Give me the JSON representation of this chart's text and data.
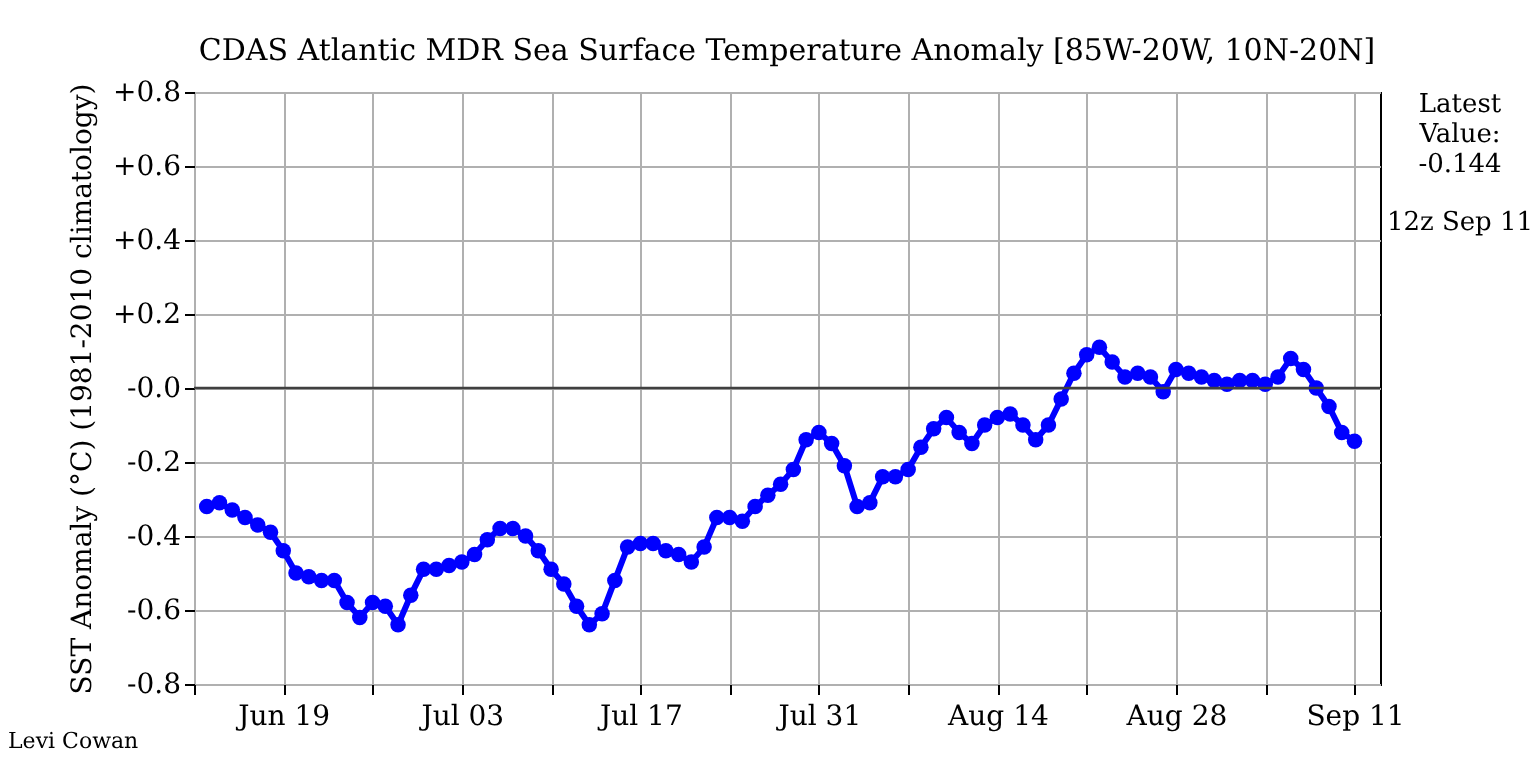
{
  "chart_data": {
    "type": "line",
    "title": "CDAS Atlantic MDR Sea Surface Temperature Anomaly [85W-20W, 10N-20N]",
    "ylabel": "SST Anomaly (°C) (1981-2010 climatology)",
    "x": [
      "--06-13",
      "--06-14",
      "--06-15",
      "--06-16",
      "--06-17",
      "--06-18",
      "--06-19",
      "--06-20",
      "--06-21",
      "--06-22",
      "--06-23",
      "--06-24",
      "--06-25",
      "--06-26",
      "--06-27",
      "--06-28",
      "--06-29",
      "--06-30",
      "--07-01",
      "--07-02",
      "--07-03",
      "--07-04",
      "--07-05",
      "--07-06",
      "--07-07",
      "--07-08",
      "--07-09",
      "--07-10",
      "--07-11",
      "--07-12",
      "--07-13",
      "--07-14",
      "--07-15",
      "--07-16",
      "--07-17",
      "--07-18",
      "--07-19",
      "--07-20",
      "--07-21",
      "--07-22",
      "--07-23",
      "--07-24",
      "--07-25",
      "--07-26",
      "--07-27",
      "--07-28",
      "--07-29",
      "--07-30",
      "--07-31",
      "--08-01",
      "--08-02",
      "--08-03",
      "--08-04",
      "--08-05",
      "--08-06",
      "--08-07",
      "--08-08",
      "--08-09",
      "--08-10",
      "--08-11",
      "--08-12",
      "--08-13",
      "--08-14",
      "--08-15",
      "--08-16",
      "--08-17",
      "--08-18",
      "--08-19",
      "--08-20",
      "--08-21",
      "--08-22",
      "--08-23",
      "--08-24",
      "--08-25",
      "--08-26",
      "--08-27",
      "--08-28",
      "--08-29",
      "--08-30",
      "--08-31",
      "--09-01",
      "--09-02",
      "--09-03",
      "--09-04",
      "--09-05",
      "--09-06",
      "--09-07",
      "--09-08",
      "--09-09",
      "--09-10",
      "--09-11"
    ],
    "series": [
      {
        "color": "#0000ff",
        "values": [
          -0.32,
          -0.31,
          -0.33,
          -0.35,
          -0.37,
          -0.39,
          -0.44,
          -0.5,
          -0.51,
          -0.52,
          -0.52,
          -0.58,
          -0.62,
          -0.58,
          -0.59,
          -0.64,
          -0.56,
          -0.49,
          -0.49,
          -0.48,
          -0.47,
          -0.45,
          -0.41,
          -0.38,
          -0.38,
          -0.4,
          -0.44,
          -0.49,
          -0.53,
          -0.59,
          -0.64,
          -0.61,
          -0.52,
          -0.43,
          -0.42,
          -0.42,
          -0.44,
          -0.45,
          -0.47,
          -0.43,
          -0.35,
          -0.35,
          -0.36,
          -0.32,
          -0.29,
          -0.26,
          -0.22,
          -0.14,
          -0.12,
          -0.15,
          -0.21,
          -0.32,
          -0.31,
          -0.24,
          -0.24,
          -0.22,
          -0.16,
          -0.11,
          -0.08,
          -0.12,
          -0.15,
          -0.1,
          -0.08,
          -0.07,
          -0.1,
          -0.14,
          -0.1,
          -0.03,
          0.04,
          0.09,
          0.11,
          0.07,
          0.03,
          0.04,
          0.03,
          -0.01,
          0.05,
          0.04,
          0.03,
          0.02,
          0.01,
          0.02,
          0.02,
          0.01,
          0.03,
          0.08,
          0.05,
          0.0,
          -0.05,
          -0.12,
          -0.144
        ]
      }
    ],
    "xlim": [
      "--06-12",
      "--09-13"
    ],
    "xticks": [
      {
        "value": "--06-12",
        "label": null
      },
      {
        "value": "--06-19",
        "label": "Jun 19"
      },
      {
        "value": "--06-26",
        "label": null
      },
      {
        "value": "--07-03",
        "label": "Jul 03"
      },
      {
        "value": "--07-10",
        "label": null
      },
      {
        "value": "--07-17",
        "label": "Jul 17"
      },
      {
        "value": "--07-24",
        "label": null
      },
      {
        "value": "--07-31",
        "label": "Jul 31"
      },
      {
        "value": "--08-07",
        "label": null
      },
      {
        "value": "--08-14",
        "label": "Aug 14"
      },
      {
        "value": "--08-21",
        "label": null
      },
      {
        "value": "--08-28",
        "label": "Aug 28"
      },
      {
        "value": "--09-04",
        "label": null
      },
      {
        "value": "--09-11",
        "label": "Sep 11"
      }
    ],
    "ylim": [
      -0.8,
      0.8
    ],
    "yticks": [
      {
        "value": 0.8,
        "label": "+0.8"
      },
      {
        "value": 0.6,
        "label": "+0.6"
      },
      {
        "value": 0.4,
        "label": "+0.4"
      },
      {
        "value": 0.2,
        "label": "+0.2"
      },
      {
        "value": 0,
        "label": "-0.0"
      },
      {
        "value": -0.2,
        "label": "-0.2"
      },
      {
        "value": -0.4,
        "label": "-0.4"
      },
      {
        "value": -0.6,
        "label": "-0.6"
      },
      {
        "value": -0.8,
        "label": "-0.8"
      }
    ],
    "ref_lines": [
      {
        "axis": "y",
        "value": 0,
        "color": "#404040"
      }
    ],
    "grid": true,
    "marker": "circle",
    "line_style": "solid",
    "annotations": [
      "Latest Value: -0.144",
      "12z Sep 11",
      "Levi Cowan"
    ]
  }
}
